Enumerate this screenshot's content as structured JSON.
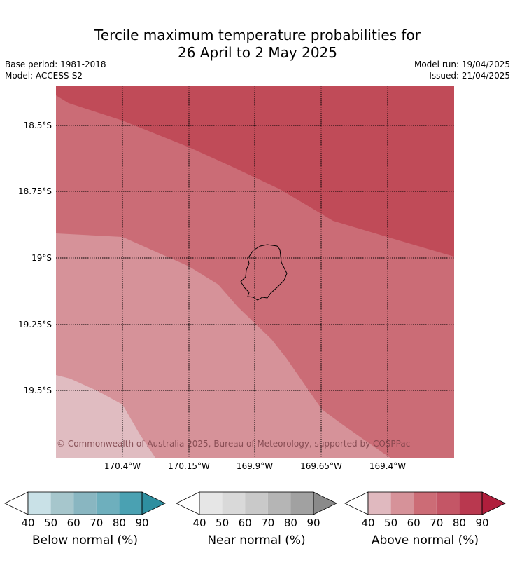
{
  "title_line1": "Tercile maximum temperature probabilities for",
  "title_line2": "26 April to 2 May 2025",
  "base_period": "Base period: 1981-2018",
  "model": "Model: ACCESS-S2",
  "model_run": "Model run: 19/04/2025",
  "issued": "Issued: 21/04/2025",
  "map": {
    "lat_ticks": [
      "18.5°S",
      "18.75°S",
      "19°S",
      "19.25°S",
      "19.5°S"
    ],
    "lon_ticks": [
      "170.4°W",
      "170.15°W",
      "169.9°W",
      "169.65°W",
      "169.4°W"
    ],
    "copyright": "© Commonwealth of Australia 2025, Bureau of Meteorology, supported by COSPPac",
    "categories_shown": [
      "Above normal 40-50%",
      "Above normal 50-60%",
      "Above normal 60-70%",
      "Above normal 70-80%"
    ]
  },
  "colorbars": [
    {
      "label": "Below normal (%)",
      "ticks": [
        "40",
        "50",
        "60",
        "70",
        "80",
        "90"
      ],
      "colors": [
        "#c9e1e7",
        "#a6c6cc",
        "#89b6c1",
        "#6eafbd",
        "#4aa1b2",
        "#2e8fa0"
      ]
    },
    {
      "label": "Near normal (%)",
      "ticks": [
        "40",
        "50",
        "60",
        "70",
        "80",
        "90"
      ],
      "colors": [
        "#e6e6e6",
        "#d9d9d9",
        "#c9c9c9",
        "#b5b5b5",
        "#a1a1a1",
        "#8a8a8a"
      ]
    },
    {
      "label": "Above normal (%)",
      "ticks": [
        "40",
        "50",
        "60",
        "70",
        "80",
        "90"
      ],
      "colors": [
        "#e0b9bf",
        "#d69299",
        "#cc6c76",
        "#c45666",
        "#b9384f",
        "#b01e3c"
      ]
    }
  ],
  "colors": {
    "above_40_50": "#e0bcc1",
    "above_50_60": "#d69299",
    "above_60_70": "#cb6c76",
    "above_70_80": "#c04b58"
  }
}
